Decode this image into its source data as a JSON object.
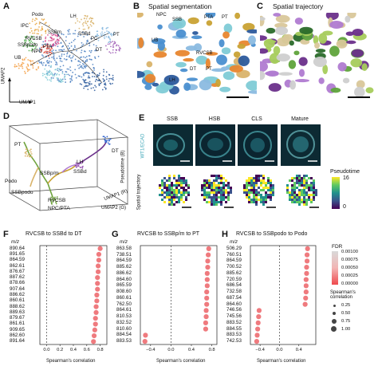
{
  "panels": {
    "A": {
      "letter": "A",
      "umap2": "UMAP2",
      "umap1": "UMAP1",
      "labels": [
        "PT",
        "Podo",
        "LH",
        "SSBd",
        "RVCSB",
        "SSBm",
        "SSBpodo",
        "DT",
        "PTA",
        "NPC",
        "UB",
        "PC",
        "IPC"
      ]
    },
    "B": {
      "letter": "B",
      "title": "Spatial segmentation",
      "labels": [
        "NPC",
        "SSB",
        "PTA",
        "PT",
        "UB",
        "RVCSB",
        "LH",
        "DT",
        "PT"
      ]
    },
    "C": {
      "letter": "C",
      "title": "Spatial trajectory"
    },
    "D": {
      "letter": "D",
      "labels": [
        "PT",
        "DT",
        "LH",
        "SSBd",
        "Podo",
        "SSBp/m",
        "SSBpodo",
        "RVCSB",
        "NPC/PTA"
      ],
      "axes": [
        "UMAP1 (R)",
        "UMAP2 (G)",
        "Pseudotime (B)"
      ]
    },
    "E": {
      "letter": "E",
      "columns": [
        "SSB",
        "HSB",
        "CLS",
        "Mature"
      ],
      "row1_label": "WT1/ECAD",
      "row2_label": "Spatial trajectory",
      "legend_title": "Pseudotime",
      "legend_max": "16",
      "legend_min": "0"
    },
    "F": {
      "letter": "F",
      "title": "RVCSB to SSBd to DT",
      "mz_label": "m/z",
      "xlabel": "Spearman's correlation",
      "ticks": [
        "0.0",
        "0.2",
        "0.4",
        "0.6",
        "0.8"
      ],
      "mz": [
        "890.64",
        "891.65",
        "864.59",
        "862.61",
        "876.67",
        "887.62",
        "878.66",
        "907.64",
        "886.62",
        "860.61",
        "888.62",
        "889.63",
        "879.67",
        "861.61",
        "909.65",
        "862.60",
        "891.64"
      ]
    },
    "G": {
      "letter": "G",
      "title": "RVCSB to SSBp/m to PT",
      "mz_label": "m/z",
      "xlabel": "Spearman's correlation",
      "ticks": [
        "−0.4",
        "0.0",
        "0.4",
        "0.8"
      ],
      "mz": [
        "863.58",
        "738.51",
        "864.59",
        "885.62",
        "886.62",
        "864.60",
        "865.59",
        "808.60",
        "860.61",
        "762.50",
        "864.61",
        "810.53",
        "832.52",
        "810.60",
        "884.54",
        "883.53"
      ]
    },
    "H": {
      "letter": "H",
      "title": "RVCSB to SSBpodo to Podo",
      "mz_label": "m/z",
      "xlabel": "Spearman's correlation",
      "ticks": [
        "−0.4",
        "0.0",
        "0.4"
      ],
      "mz": [
        "506.29",
        "760.51",
        "864.59",
        "700.52",
        "885.62",
        "720.59",
        "686.54",
        "732.58",
        "687.54",
        "864.60",
        "746.56",
        "745.56",
        "883.52",
        "884.55",
        "883.53",
        "742.53"
      ]
    },
    "legend": {
      "fdr_title": "FDR",
      "fdr_values": [
        "0.00100",
        "0.00075",
        "0.00050",
        "0.00025",
        "0.00000"
      ],
      "size_title": "Spearman's\ncorrelation",
      "size_values": [
        "0.25",
        "0.50",
        "0.75",
        "1.00"
      ]
    }
  },
  "chart_data": [
    {
      "type": "scatter",
      "title": "RVCSB to SSBd to DT",
      "xlabel": "Spearman's correlation",
      "ylabel": "m/z",
      "categories": [
        "890.64",
        "891.65",
        "864.59",
        "862.61",
        "876.67",
        "887.62",
        "878.66",
        "907.64",
        "886.62",
        "860.61",
        "888.62",
        "889.63",
        "879.67",
        "861.61",
        "909.65",
        "862.60",
        "891.64"
      ],
      "values": [
        0.8,
        0.78,
        0.78,
        0.77,
        0.77,
        0.76,
        0.76,
        0.76,
        0.75,
        0.75,
        0.74,
        0.74,
        0.73,
        0.73,
        0.72,
        0.71,
        0.7
      ],
      "xlim": [
        -0.1,
        0.9
      ]
    },
    {
      "type": "scatter",
      "title": "RVCSB to SSBp/m to PT",
      "xlabel": "Spearman's correlation",
      "ylabel": "m/z",
      "categories": [
        "863.58",
        "738.51",
        "864.59",
        "885.62",
        "886.62",
        "864.60",
        "865.59",
        "808.60",
        "860.61",
        "762.50",
        "864.61",
        "810.53",
        "832.52",
        "810.60",
        "884.54",
        "883.53"
      ],
      "values": [
        0.74,
        0.73,
        0.72,
        0.72,
        0.71,
        0.71,
        0.71,
        0.7,
        0.7,
        0.7,
        0.69,
        0.69,
        0.68,
        0.68,
        -0.5,
        -0.51
      ],
      "xlim": [
        -0.6,
        0.9
      ]
    },
    {
      "type": "scatter",
      "title": "RVCSB to SSBpodo to Podo",
      "xlabel": "Spearman's correlation",
      "ylabel": "m/z",
      "categories": [
        "506.29",
        "760.51",
        "864.59",
        "700.52",
        "885.62",
        "720.59",
        "686.54",
        "732.58",
        "687.54",
        "864.60",
        "746.56",
        "745.56",
        "883.52",
        "884.55",
        "883.53",
        "742.53"
      ],
      "values": [
        0.58,
        0.57,
        0.57,
        0.56,
        0.56,
        0.55,
        0.55,
        0.55,
        0.54,
        0.53,
        -0.42,
        -0.43,
        -0.44,
        -0.45,
        -0.46,
        -0.47
      ],
      "xlim": [
        -0.6,
        0.75
      ]
    }
  ]
}
